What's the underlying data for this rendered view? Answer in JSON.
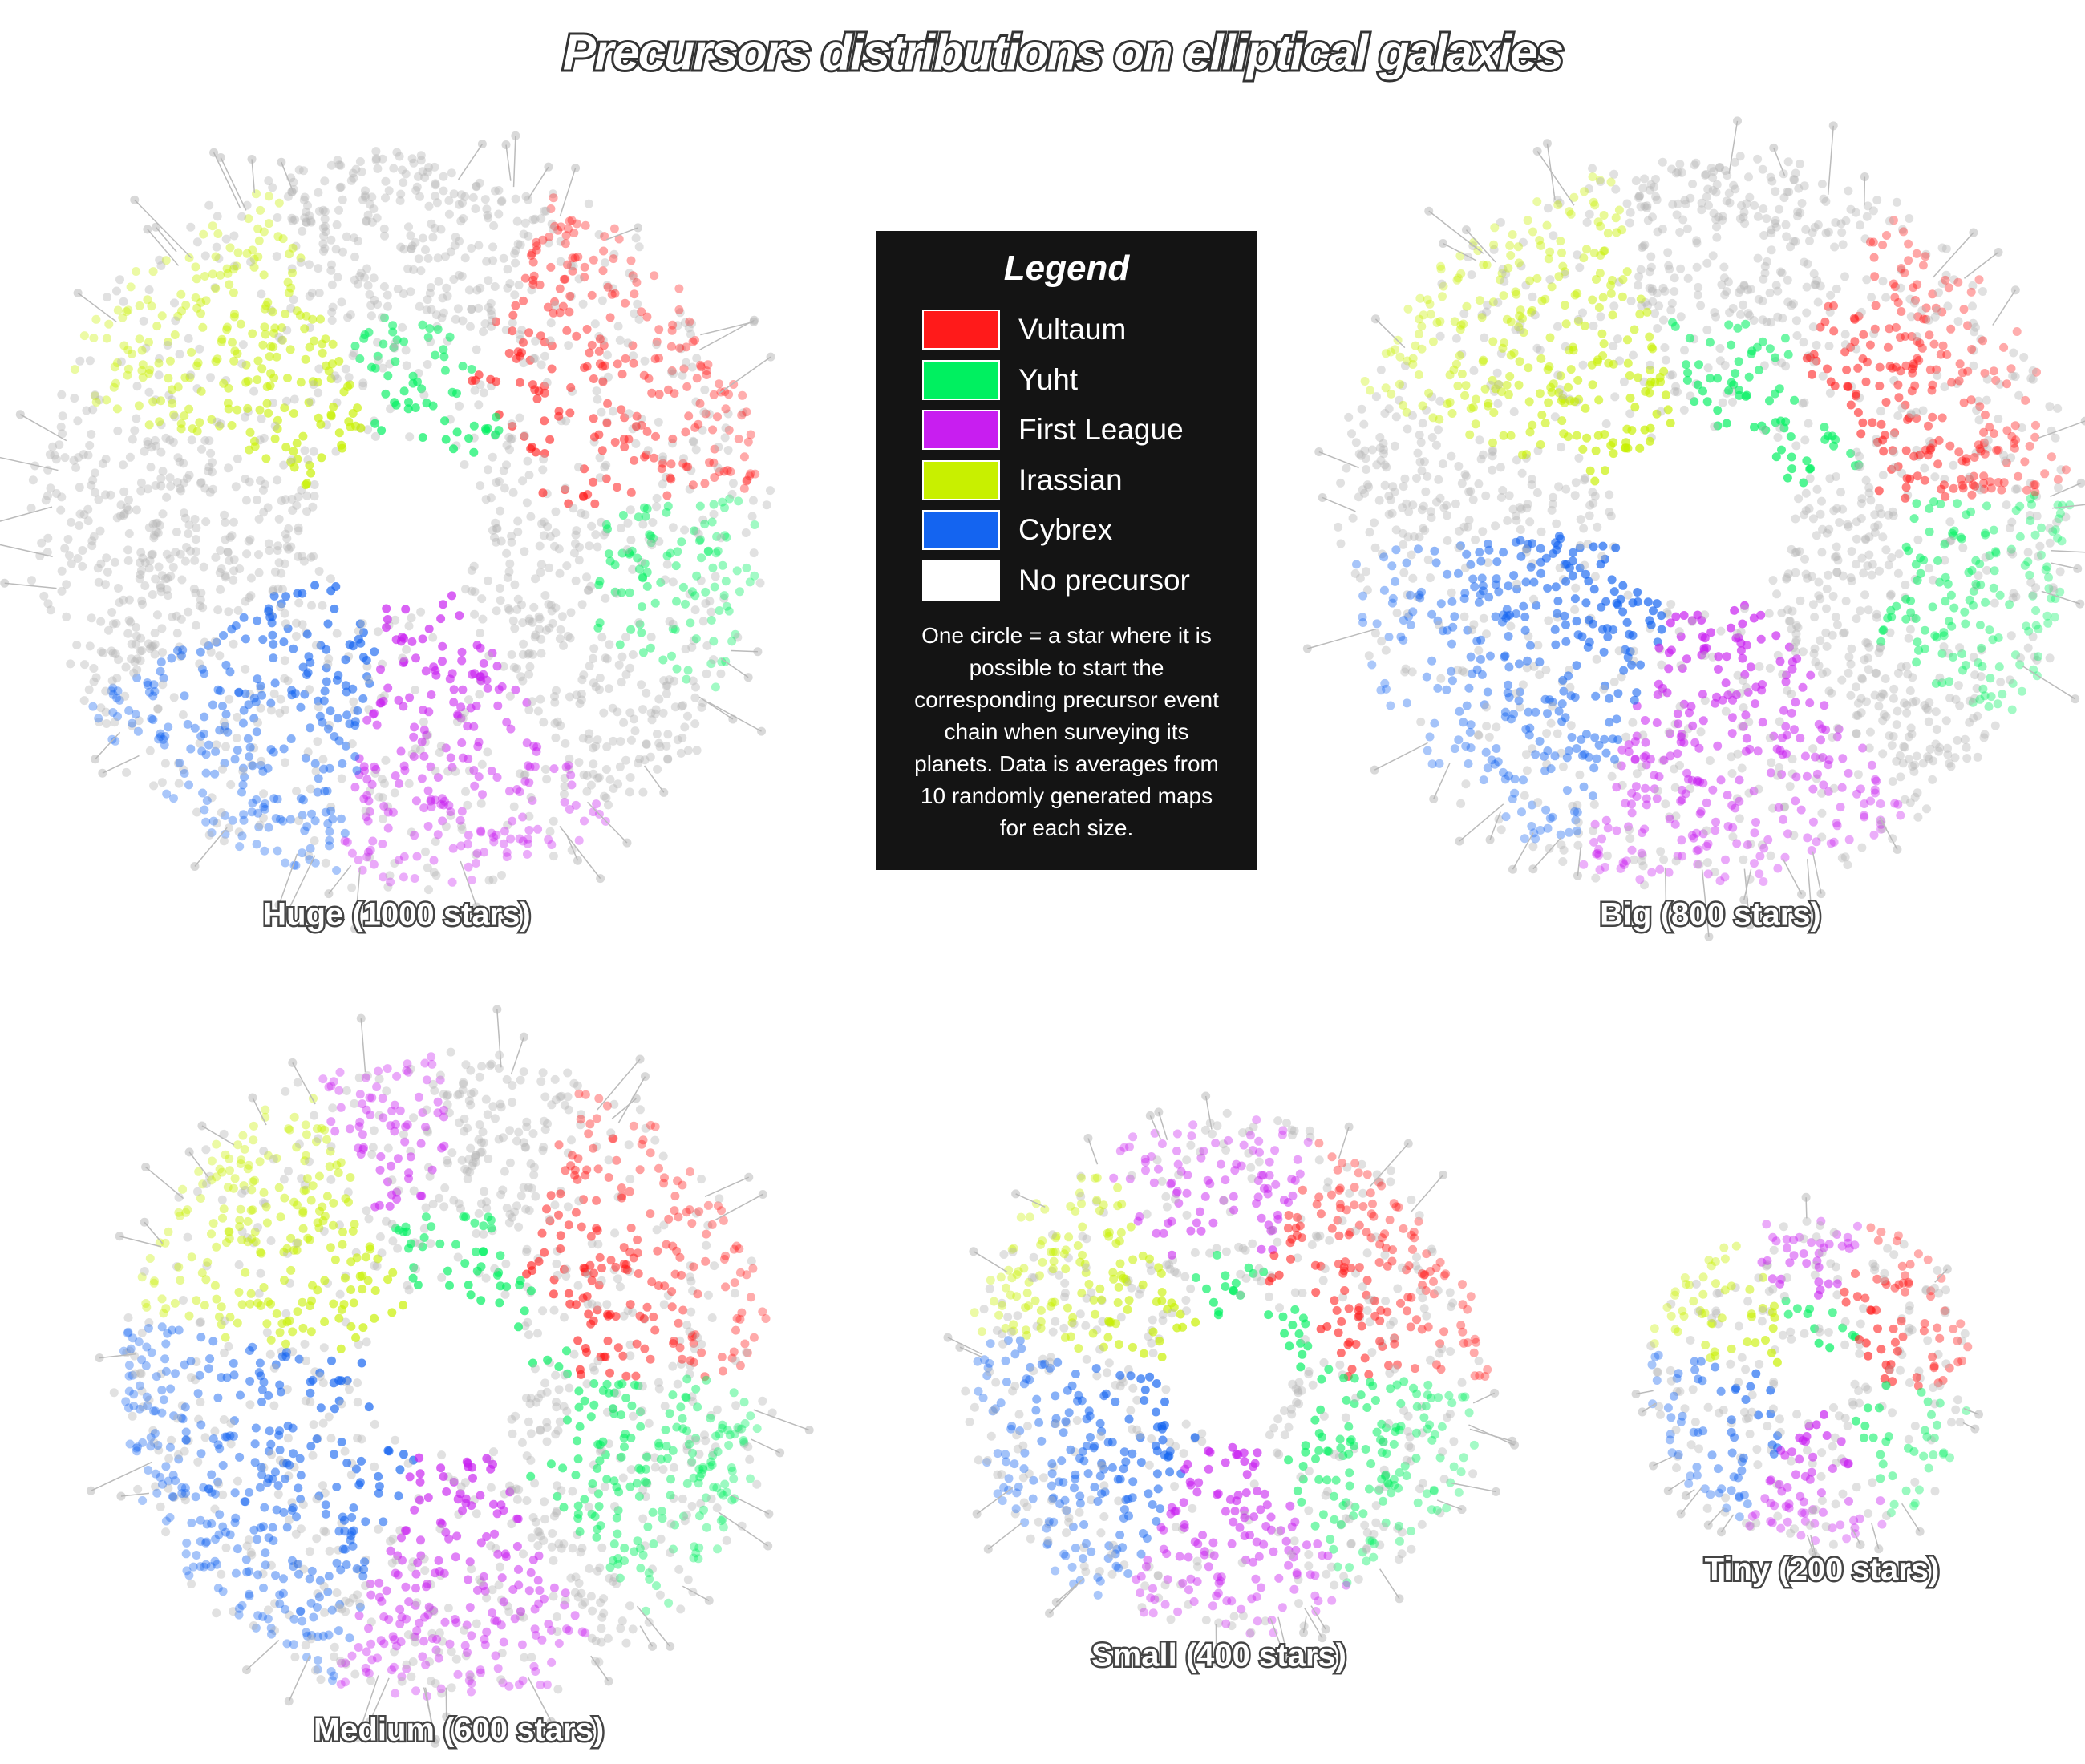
{
  "title": "Precursors distributions on elliptical galaxies",
  "legend": {
    "title": "Legend",
    "items": [
      {
        "label": "Vultaum",
        "color": "#ff1a1a"
      },
      {
        "label": "Yuht",
        "color": "#00f060"
      },
      {
        "label": "First League",
        "color": "#c81ef0"
      },
      {
        "label": "Irassian",
        "color": "#c8f000"
      },
      {
        "label": "Cybrex",
        "color": "#1464f0"
      },
      {
        "label": "No precursor",
        "color": "#ffffff"
      }
    ],
    "note": "One circle = a star where it is possible to start the corresponding precursor event chain when surveying its planets. Data is averages from 10 randomly generated maps for each size."
  },
  "galaxies": [
    {
      "label": "Huge (1000 stars)"
    },
    {
      "label": "Big (800 stars)"
    },
    {
      "label": "Medium (600 stars)"
    },
    {
      "label": "Small (400 stars)"
    },
    {
      "label": "Tiny (200 stars)"
    }
  ]
}
